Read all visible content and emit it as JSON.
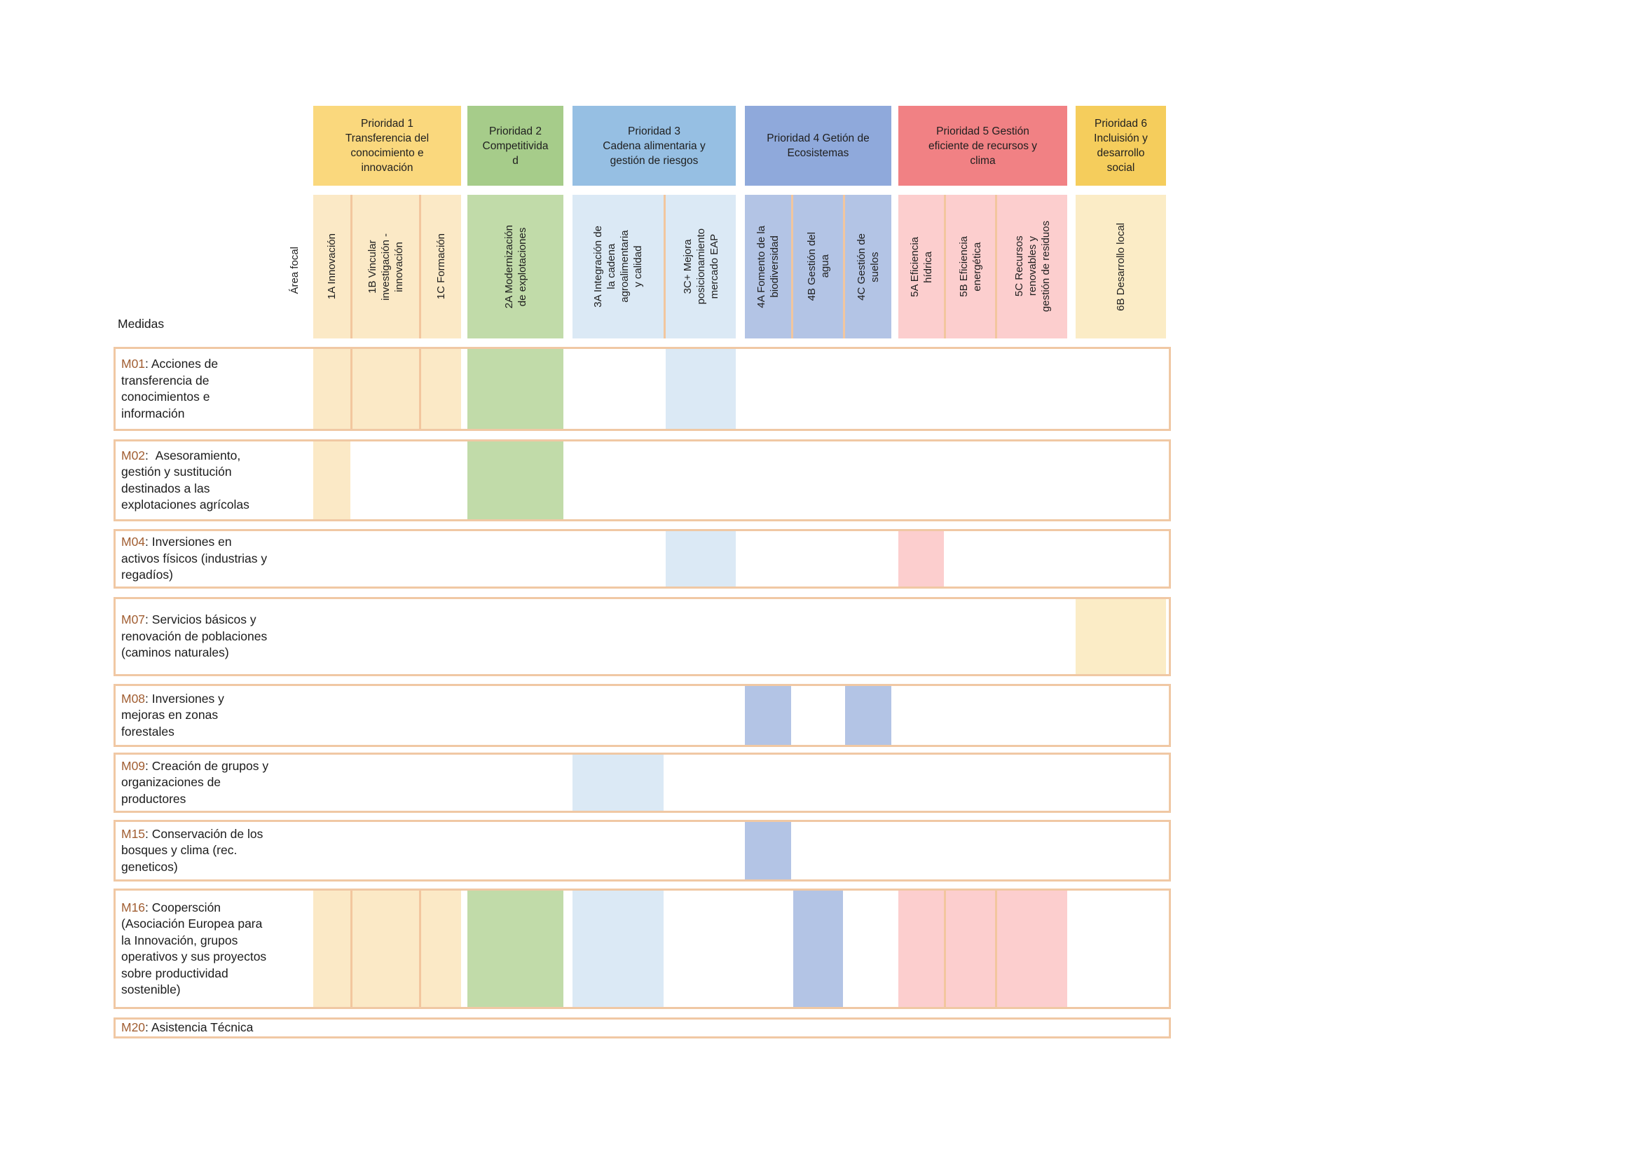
{
  "labels": {
    "area_focal": "Área focal",
    "medidas": "Medidas",
    "separator": ": "
  },
  "theme": {
    "row_border": "#F0C8A4",
    "divider": "#F2C69E",
    "prefix_color": "#A15E32",
    "text_color": "#1C1C1C",
    "background": "#FFFFFF"
  },
  "priorities": [
    {
      "id": "P1",
      "label": "Prioridad 1\nTransferencia del\nconocimiento e\ninnovación",
      "header_color": "#FAD87D",
      "cell_color": "#FBE9C6",
      "columns": [
        {
          "id": "1A",
          "label": "1A Innovación"
        },
        {
          "id": "1B",
          "label": "1B Vincular\ninvestigación -\ninnovación"
        },
        {
          "id": "1C",
          "label": "1C Formación"
        }
      ]
    },
    {
      "id": "P2",
      "label": "Prioridad 2\nCompetitivida\nd",
      "header_color": "#A6CC8A",
      "cell_color": "#C1DBA9",
      "columns": [
        {
          "id": "2A",
          "label": "2A Modernización\nde explotaciones"
        }
      ]
    },
    {
      "id": "P3",
      "label": "Prioridad 3\nCadena alimentaria y\ngestión de riesgos",
      "header_color": "#96BFE3",
      "cell_color": "#DBE9F5",
      "columns": [
        {
          "id": "3A",
          "label": "3A Integración de\nla cadena\nagroalimentaria\ny calidad"
        },
        {
          "id": "3C+",
          "label": "3C+ Mejora\nposicionamiento\nmercado EAP"
        }
      ]
    },
    {
      "id": "P4",
      "label": "Prioridad 4 Getión de\nEcosistemas",
      "header_color": "#8FA9DB",
      "cell_color": "#B3C4E5",
      "columns": [
        {
          "id": "4A",
          "label": "4A Fomento de la\nbiodiversidad"
        },
        {
          "id": "4B",
          "label": "4B Gestión del\nagua"
        },
        {
          "id": "4C",
          "label": "4C Gestión de\nsuelos"
        }
      ]
    },
    {
      "id": "P5",
      "label": "Prioridad 5 Gestión\neficiente de recursos y\nclima",
      "header_color": "#F18184",
      "cell_color": "#FCCECE",
      "columns": [
        {
          "id": "5A",
          "label": "5A Eficiencia\nhídrica"
        },
        {
          "id": "5B",
          "label": "5B Eficiencia\nenergética"
        },
        {
          "id": "5C",
          "label": "5C Recursos\nrenovables y\ngestión de residuos"
        }
      ]
    },
    {
      "id": "P6",
      "label": "Prioridad 6\nIncluisión y\ndesarrollo\nsocial",
      "header_color": "#F5CD5C",
      "cell_color": "#FBECC6",
      "columns": [
        {
          "id": "6B",
          "label": "6B Desarrollo local"
        }
      ]
    }
  ],
  "measures": [
    {
      "id": "M01",
      "label": "Acciones de\ntransferencia de\nconocimientos e\ninformación",
      "marked": [
        "1A",
        "1B",
        "1C",
        "2A",
        "3C+"
      ]
    },
    {
      "id": "M02",
      "label": " Asesoramiento,\ngestión y sustitución\ndestinados a las\nexplotaciones agrícolas",
      "marked": [
        "1A",
        "2A"
      ]
    },
    {
      "id": "M04",
      "label": "Inversiones en\nactivos físicos (industrias y\nregadíos)",
      "marked": [
        "3C+",
        "5A"
      ]
    },
    {
      "id": "M07",
      "label": "Servicios básicos y\nrenovación de poblaciones\n(caminos naturales)",
      "marked": [
        "6B"
      ]
    },
    {
      "id": "M08",
      "label": "Inversiones y\nmejoras en zonas\nforestales",
      "marked": [
        "4A",
        "4C"
      ]
    },
    {
      "id": "M09",
      "label": "Creación de grupos y\norganizaciones de\nproductores",
      "marked": [
        "3A"
      ]
    },
    {
      "id": "M15",
      "label": "Conservación de los\nbosques y clima (rec.\ngeneticos)",
      "marked": [
        "4A"
      ]
    },
    {
      "id": "M16",
      "label": "Coopersción\n(Asociación Europea para\nla Innovación, grupos\noperativos y sus proyectos\nsobre productividad\nsostenible)",
      "marked": [
        "1A",
        "1B",
        "1C",
        "2A",
        "3A",
        "4B",
        "5A",
        "5B",
        "5C"
      ]
    },
    {
      "id": "M20",
      "label": "Asistencia Técnica",
      "marked": []
    }
  ]
}
